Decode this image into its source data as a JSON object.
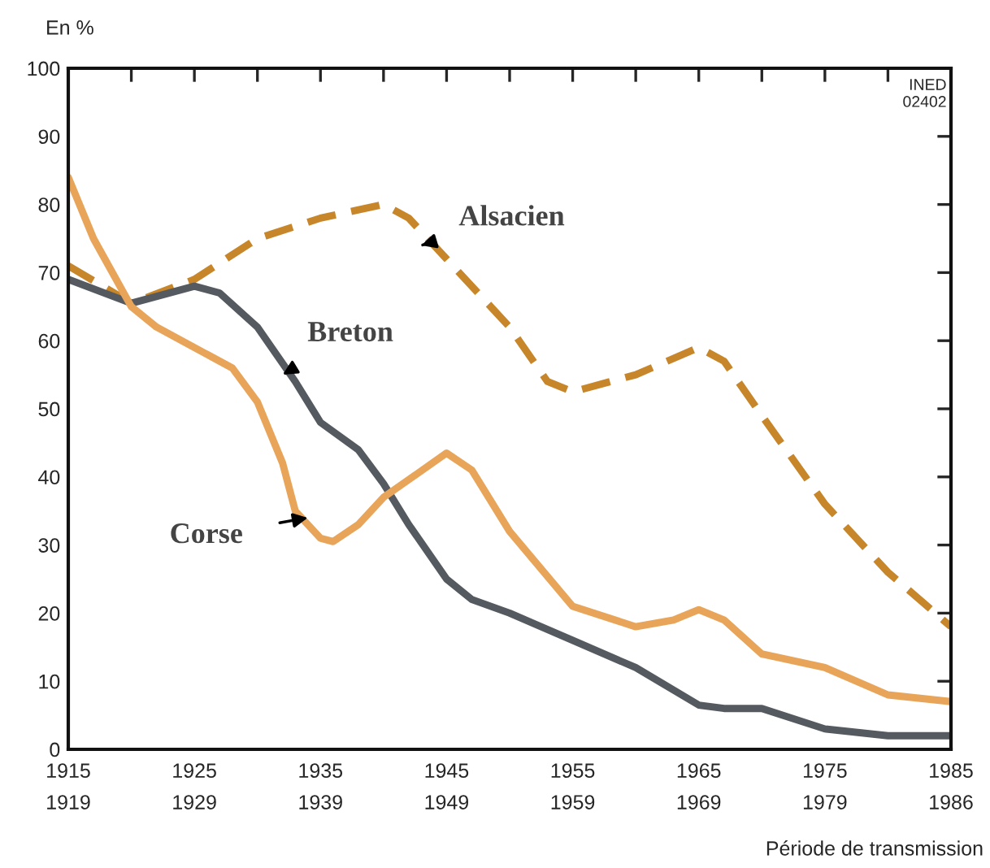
{
  "chart_data": {
    "type": "line",
    "ylabel": "En %",
    "xlabel": "Période de transmission",
    "xlim": [
      1915,
      1985
    ],
    "ylim": [
      0,
      100
    ],
    "xticks": [
      1915,
      {
        "value": 1920,
        "label": null
      },
      1925,
      {
        "value": 1930,
        "label": null
      },
      1935,
      {
        "value": 1940,
        "label": null
      },
      1945,
      {
        "value": 1950,
        "label": null
      },
      1955,
      {
        "value": 1960,
        "label": null
      },
      1965,
      {
        "value": 1970,
        "label": null
      },
      1975,
      {
        "value": 1980,
        "label": null
      },
      1985
    ],
    "yticks": [
      0,
      10,
      20,
      30,
      40,
      50,
      60,
      70,
      80,
      90,
      100
    ],
    "grid": false,
    "legend": false,
    "series": [
      {
        "color": "#c8862a",
        "line_style": "dashed",
        "x": [
          1915,
          1920,
          1925,
          1930,
          1935,
          1940,
          1942,
          1945,
          1950,
          1953,
          1955,
          1960,
          1965,
          1967,
          1970,
          1975,
          1980,
          1985
        ],
        "values": [
          71,
          65.5,
          69,
          75,
          78,
          80,
          78,
          72,
          62,
          54,
          52.5,
          55,
          59,
          57,
          49,
          36,
          26,
          18
        ]
      },
      {
        "color": "#555a60",
        "line_style": "solid",
        "x": [
          1915,
          1920,
          1925,
          1927,
          1930,
          1933,
          1935,
          1938,
          1940,
          1942,
          1945,
          1947,
          1950,
          1955,
          1960,
          1965,
          1967,
          1970,
          1975,
          1980,
          1985
        ],
        "values": [
          69,
          65.5,
          68,
          67,
          62,
          54,
          48,
          44,
          39,
          33,
          25,
          22,
          20,
          16,
          12,
          6.5,
          6,
          6,
          3,
          2,
          2
        ]
      },
      {
        "color": "#e8a55a",
        "line_style": "solid",
        "x": [
          1915,
          1917,
          1920,
          1922,
          1925,
          1928,
          1930,
          1932,
          1933,
          1935,
          1936,
          1938,
          1940,
          1945,
          1947,
          1950,
          1955,
          1960,
          1963,
          1965,
          1967,
          1970,
          1975,
          1980,
          1985
        ],
        "values": [
          84,
          75,
          65,
          62,
          59,
          56,
          51,
          42,
          35,
          31,
          30.5,
          33,
          37,
          43.5,
          41,
          32,
          21,
          18,
          19,
          20.5,
          19,
          14,
          12,
          8,
          7
        ]
      }
    ],
    "annotations": [
      {
        "text": "Alsacien",
        "x": 1943,
        "y": 74
      },
      {
        "text": "Breton",
        "x": 1932,
        "y": 55
      },
      {
        "text": "Corse",
        "x": 1934,
        "y": 34
      },
      "INED\n02402",
      "1919",
      "1929",
      "1939",
      "1949",
      "1959",
      "1969",
      "1979",
      "1986"
    ]
  }
}
